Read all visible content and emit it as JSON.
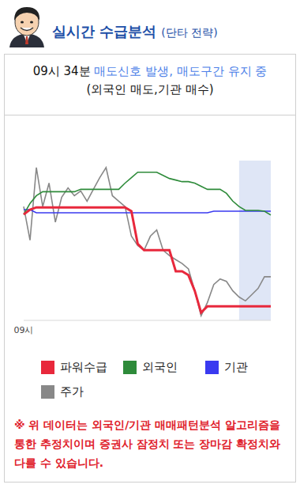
{
  "header": {
    "title": "실시간 수급분석",
    "subtitle": "(단타 전략)"
  },
  "signal": {
    "time": "09시 34분",
    "text": "매도신호 발생, 매도구간 유지 중",
    "detail": "(외국인 매도,기관 매수)"
  },
  "chart_data": {
    "type": "line",
    "categories": [
      "09시",
      null,
      null,
      null,
      null,
      null,
      null,
      null,
      null,
      null,
      null,
      null,
      null,
      null,
      null,
      null,
      null,
      null,
      null,
      null,
      null,
      null,
      null,
      null,
      null,
      null,
      null,
      null,
      null,
      null,
      null,
      null,
      null,
      null,
      null,
      null,
      null,
      null,
      null,
      null
    ],
    "series": [
      {
        "name": "파워수급",
        "color": "#e8283c",
        "values": [
          66.3,
          69.3,
          70.7,
          70.7,
          70.7,
          70.7,
          70.7,
          70.7,
          70.7,
          70.7,
          70.7,
          70.7,
          70.7,
          70.7,
          70.7,
          70.7,
          70.7,
          68.3,
          47.8,
          43.9,
          43.9,
          43.9,
          43.9,
          43.9,
          30.7,
          30.7,
          28.3,
          18.5,
          4.9,
          8.8,
          8.8,
          8.8,
          8.8,
          8.8,
          8.8,
          8.8,
          8.8,
          8.8,
          8.8,
          8.8
        ]
      },
      {
        "name": "외국인",
        "color": "#2e8b3a",
        "values": [
          66.3,
          73.2,
          78.0,
          80.5,
          80.5,
          80.5,
          80.5,
          80.5,
          80.5,
          82.0,
          82.0,
          82.0,
          82.0,
          82.0,
          82.0,
          82.0,
          85.9,
          89.3,
          92.7,
          92.7,
          92.7,
          92.7,
          90.7,
          88.8,
          87.8,
          86.8,
          86.8,
          85.9,
          83.9,
          82.0,
          82.0,
          82.0,
          79.5,
          74.6,
          71.2,
          68.8,
          68.8,
          68.8,
          68.3,
          65.9
        ]
      },
      {
        "name": "기관",
        "color": "#3a3af0",
        "values": [
          69.3,
          69.3,
          67.3,
          67.3,
          67.3,
          67.3,
          67.3,
          67.3,
          67.3,
          67.3,
          67.3,
          67.3,
          67.3,
          67.3,
          67.3,
          67.3,
          67.3,
          67.3,
          67.3,
          67.3,
          67.3,
          67.3,
          67.3,
          67.3,
          67.3,
          67.3,
          67.3,
          67.3,
          67.3,
          67.3,
          68.3,
          68.3,
          68.3,
          68.3,
          68.3,
          68.3,
          68.3,
          68.3,
          68.3,
          68.3
        ]
      },
      {
        "name": "주가",
        "color": "#888888",
        "values": [
          71.2,
          50.2,
          95.6,
          71.2,
          85.9,
          61.5,
          77.1,
          82.9,
          78.0,
          81.0,
          74.6,
          82.0,
          89.3,
          95.6,
          78.0,
          74.6,
          71.2,
          52.7,
          46.8,
          43.9,
          52.7,
          56.6,
          43.9,
          40.5,
          38.0,
          35.6,
          32.2,
          18.5,
          2.9,
          11.2,
          22.4,
          25.9,
          24.4,
          18.5,
          14.6,
          12.2,
          16.1,
          20.0,
          27.3,
          27.3
        ]
      }
    ],
    "shaded_range": [
      34,
      39
    ],
    "ylim": [
      0,
      100
    ],
    "yticks": [],
    "tick_labels": "x",
    "legend": "bottom"
  },
  "footnote": "※ 위 데이터는 외국인/기관 매매패턴분석 알고리즘을 통한 추정치이며 증권사 잠정치 또는 장마감 확정치와 다를 수 있습니다."
}
